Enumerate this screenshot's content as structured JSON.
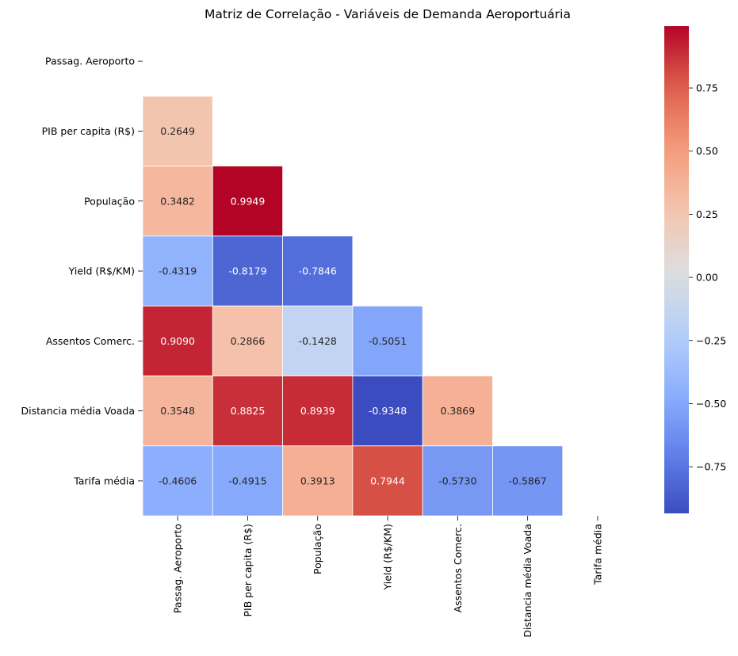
{
  "chart_data": {
    "type": "heatmap",
    "title": "Matriz de Correlação - Variáveis de Demanda Aeroportuária",
    "labels": [
      "Passag. Aeroporto",
      "PIB per capita (R$)",
      "População",
      "Yield (R$/KM)",
      "Assentos Comerc.",
      "Distancia média Voada",
      "Tarifa média"
    ],
    "mask": "upper-triangle-including-diagonal",
    "values": [
      [
        null,
        null,
        null,
        null,
        null,
        null,
        null
      ],
      [
        0.2649,
        null,
        null,
        null,
        null,
        null,
        null
      ],
      [
        0.3482,
        0.9949,
        null,
        null,
        null,
        null,
        null
      ],
      [
        -0.4319,
        -0.8179,
        -0.7846,
        null,
        null,
        null,
        null
      ],
      [
        0.909,
        0.2866,
        -0.1428,
        -0.5051,
        null,
        null,
        null
      ],
      [
        0.3548,
        0.8825,
        0.8939,
        -0.9348,
        0.3869,
        null,
        null
      ],
      [
        -0.4606,
        -0.4915,
        0.3913,
        0.7944,
        -0.573,
        -0.5867,
        null
      ]
    ],
    "annotations": [
      [
        "",
        "",
        "",
        "",
        "",
        "",
        ""
      ],
      [
        "0.2649",
        "",
        "",
        "",
        "",
        "",
        ""
      ],
      [
        "0.3482",
        "0.9949",
        "",
        "",
        "",
        "",
        ""
      ],
      [
        "-0.4319",
        "-0.8179",
        "-0.7846",
        "",
        "",
        "",
        ""
      ],
      [
        "0.9090",
        "0.2866",
        "-0.1428",
        "-0.5051",
        "",
        "",
        ""
      ],
      [
        "0.3548",
        "0.8825",
        "0.8939",
        "-0.9348",
        "0.3869",
        "",
        ""
      ],
      [
        "-0.4606",
        "-0.4915",
        "0.3913",
        "0.7944",
        "-0.5730",
        "-0.5867",
        ""
      ]
    ],
    "colormap": "coolwarm",
    "vmin": -0.9348,
    "vmax": 0.9949,
    "colorbar": {
      "ticks": [
        0.75,
        0.5,
        0.25,
        0.0,
        -0.25,
        -0.5,
        -0.75
      ],
      "tick_labels": [
        "0.75",
        "0.50",
        "0.25",
        "0.00",
        "−0.25",
        "−0.50",
        "−0.75"
      ]
    }
  }
}
